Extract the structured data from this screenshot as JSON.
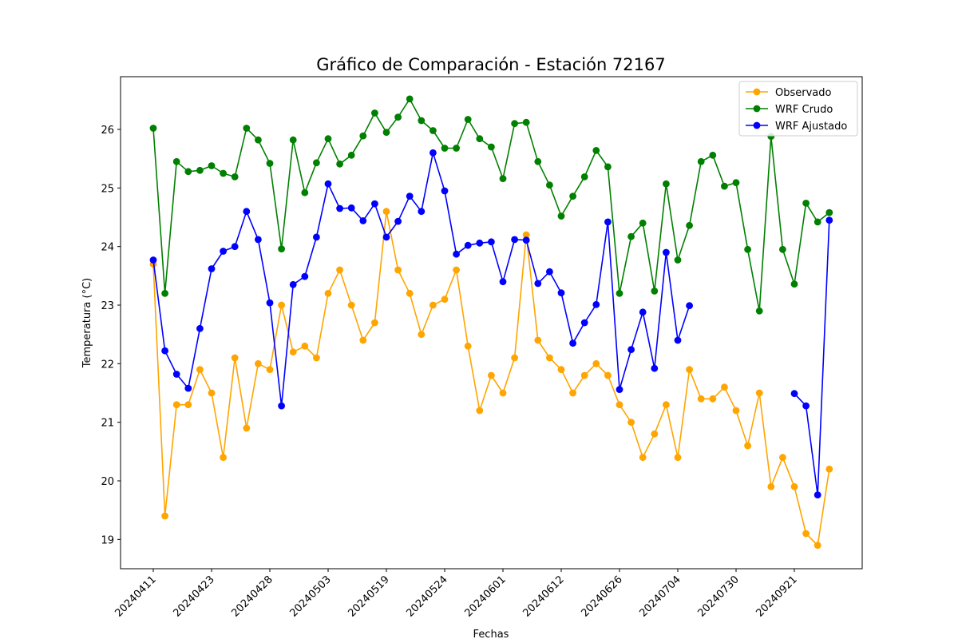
{
  "chart_data": {
    "type": "line",
    "title": "Gráfico de Comparación - Estación 72167",
    "xlabel": "Fechas",
    "ylabel": "Temperatura (°C)",
    "ylim": [
      18.5,
      26.9
    ],
    "yticks": [
      19,
      20,
      21,
      22,
      23,
      24,
      25,
      26
    ],
    "grid": false,
    "legend_position": "upper right",
    "x_tick_indices": [
      0,
      5,
      10,
      15,
      20,
      25,
      30,
      35,
      40,
      45,
      50,
      55
    ],
    "x": [
      "20240411",
      "",
      "",
      "",
      "",
      "20240423",
      "",
      "",
      "",
      "",
      "20240428",
      "",
      "",
      "",
      "",
      "20240503",
      "",
      "",
      "",
      "",
      "20240519",
      "",
      "",
      "",
      "",
      "20240524",
      "",
      "",
      "",
      "",
      "20240601",
      "",
      "",
      "",
      "",
      "20240612",
      "",
      "",
      "",
      "",
      "20240626",
      "",
      "",
      "",
      "",
      "20240704",
      "",
      "",
      "",
      "",
      "20240730",
      "",
      "",
      "",
      "",
      "20240921",
      "",
      "",
      ""
    ],
    "series": [
      {
        "name": "Observado",
        "color": "#ffa500",
        "values": [
          23.7,
          19.4,
          21.3,
          21.3,
          21.9,
          21.5,
          20.4,
          22.1,
          20.9,
          22.0,
          21.9,
          23.0,
          22.2,
          22.3,
          22.1,
          23.2,
          23.6,
          23.0,
          22.4,
          22.7,
          24.6,
          23.6,
          23.2,
          22.5,
          23.0,
          23.1,
          23.6,
          22.3,
          21.2,
          21.8,
          21.5,
          22.1,
          24.2,
          22.4,
          22.1,
          21.9,
          21.5,
          21.8,
          22.0,
          21.8,
          21.3,
          21.0,
          20.4,
          20.8,
          21.3,
          20.4,
          21.9,
          21.4,
          21.4,
          21.6,
          21.2,
          20.6,
          21.5,
          19.9,
          20.4,
          19.9,
          19.1,
          18.9,
          20.2
        ]
      },
      {
        "name": "WRF Crudo",
        "color": "#008000",
        "values": [
          26.02,
          23.2,
          25.45,
          25.28,
          25.3,
          25.38,
          25.25,
          25.19,
          26.02,
          25.82,
          25.42,
          23.96,
          25.82,
          24.92,
          25.43,
          25.84,
          25.41,
          25.56,
          25.89,
          26.28,
          25.95,
          26.21,
          26.52,
          26.15,
          25.98,
          25.68,
          25.68,
          26.17,
          25.84,
          25.7,
          25.16,
          26.1,
          26.12,
          25.45,
          25.05,
          24.52,
          24.86,
          25.19,
          25.64,
          25.36,
          23.2,
          24.17,
          24.4,
          23.24,
          25.07,
          23.77,
          24.36,
          25.45,
          25.56,
          25.03,
          25.09,
          23.95,
          22.9,
          25.88,
          23.95,
          23.36,
          24.74,
          24.42,
          24.58
        ]
      },
      {
        "name": "WRF Ajustado",
        "color": "#0000ff",
        "values": [
          23.77,
          22.22,
          21.82,
          21.58,
          22.6,
          23.62,
          23.92,
          24.0,
          24.6,
          24.12,
          23.04,
          21.28,
          23.35,
          23.49,
          24.16,
          25.07,
          24.65,
          24.66,
          24.44,
          24.73,
          24.16,
          24.43,
          24.86,
          24.6,
          25.6,
          24.95,
          23.87,
          24.02,
          24.06,
          24.08,
          23.4,
          24.12,
          24.11,
          23.37,
          23.57,
          23.21,
          22.35,
          22.7,
          23.01,
          24.42,
          21.56,
          22.24,
          22.88,
          21.92,
          23.9,
          22.4,
          22.99,
          null,
          null,
          null,
          null,
          null,
          null,
          null,
          null,
          21.49,
          21.28,
          19.76,
          24.45
        ]
      }
    ]
  }
}
